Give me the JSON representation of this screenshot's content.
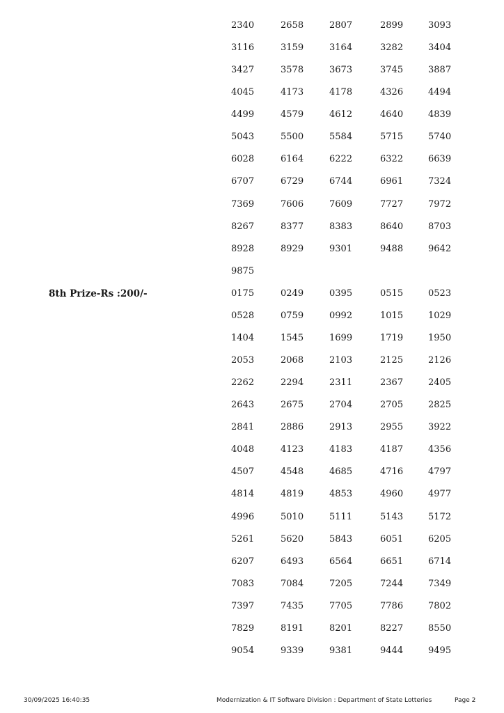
{
  "sections": [
    {
      "label": "",
      "numbers": [
        "2340",
        "2658",
        "2807",
        "2899",
        "3093",
        "3116",
        "3159",
        "3164",
        "3282",
        "3404",
        "3427",
        "3578",
        "3673",
        "3745",
        "3887",
        "4045",
        "4173",
        "4178",
        "4326",
        "4494",
        "4499",
        "4579",
        "4612",
        "4640",
        "4839",
        "5043",
        "5500",
        "5584",
        "5715",
        "5740",
        "6028",
        "6164",
        "6222",
        "6322",
        "6639",
        "6707",
        "6729",
        "6744",
        "6961",
        "7324",
        "7369",
        "7606",
        "7609",
        "7727",
        "7972",
        "8267",
        "8377",
        "8383",
        "8640",
        "8703",
        "8928",
        "8929",
        "9301",
        "9488",
        "9642",
        "9875"
      ]
    },
    {
      "label": "8th Prize-Rs :200/-",
      "numbers": [
        "0175",
        "0249",
        "0395",
        "0515",
        "0523",
        "0528",
        "0759",
        "0992",
        "1015",
        "1029",
        "1404",
        "1545",
        "1699",
        "1719",
        "1950",
        "2053",
        "2068",
        "2103",
        "2125",
        "2126",
        "2262",
        "2294",
        "2311",
        "2367",
        "2405",
        "2643",
        "2675",
        "2704",
        "2705",
        "2825",
        "2841",
        "2886",
        "2913",
        "2955",
        "3922",
        "4048",
        "4123",
        "4183",
        "4187",
        "4356",
        "4507",
        "4548",
        "4685",
        "4716",
        "4797",
        "4814",
        "4819",
        "4853",
        "4960",
        "4977",
        "4996",
        "5010",
        "5111",
        "5143",
        "5172",
        "5261",
        "5620",
        "5843",
        "6051",
        "6205",
        "6207",
        "6493",
        "6564",
        "6651",
        "6714",
        "7083",
        "7084",
        "7205",
        "7244",
        "7349",
        "7397",
        "7435",
        "7705",
        "7786",
        "7802",
        "7829",
        "8191",
        "8201",
        "8227",
        "8550",
        "9054",
        "9339",
        "9381",
        "9444",
        "9495"
      ]
    }
  ],
  "footer": {
    "timestamp": "30/09/2025 16:40:35",
    "division": "Modernization & IT Software Division : Department of State Lotteries",
    "page": "Page 2"
  }
}
